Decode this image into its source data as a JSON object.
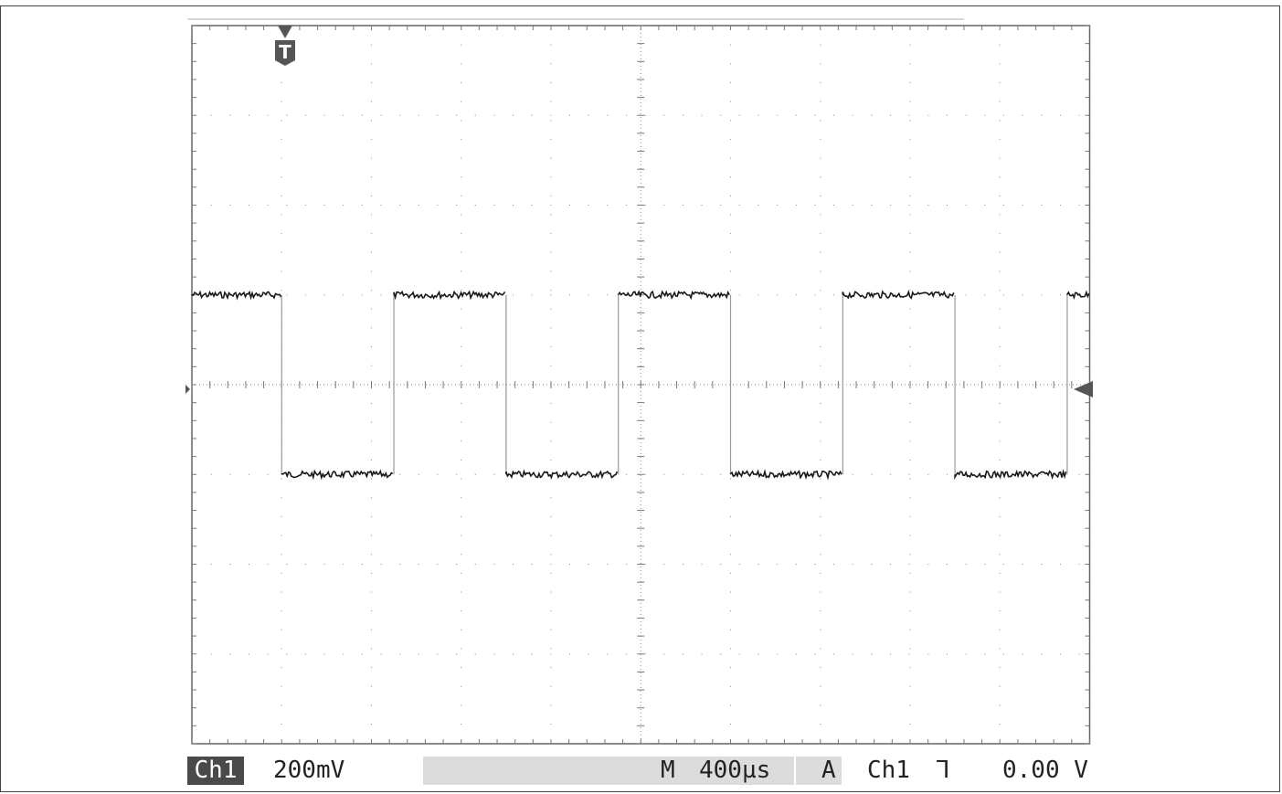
{
  "trigger_marker": {
    "label": "T"
  },
  "status": {
    "channel": "Ch1",
    "volts_per_div": "200mV",
    "timebase_prefix": "M",
    "timebase": "400µs",
    "acq_mode": "A",
    "trigger_source": "Ch1",
    "trigger_slope": "⅂",
    "trigger_level": "0.00 V"
  },
  "trace": {
    "high_divs": 1.0,
    "low_divs": -1.0,
    "transitions_divs": [
      1.0,
      2.25,
      3.5,
      4.75,
      6.0,
      7.25,
      8.5,
      9.75
    ],
    "starts_high": true
  }
}
